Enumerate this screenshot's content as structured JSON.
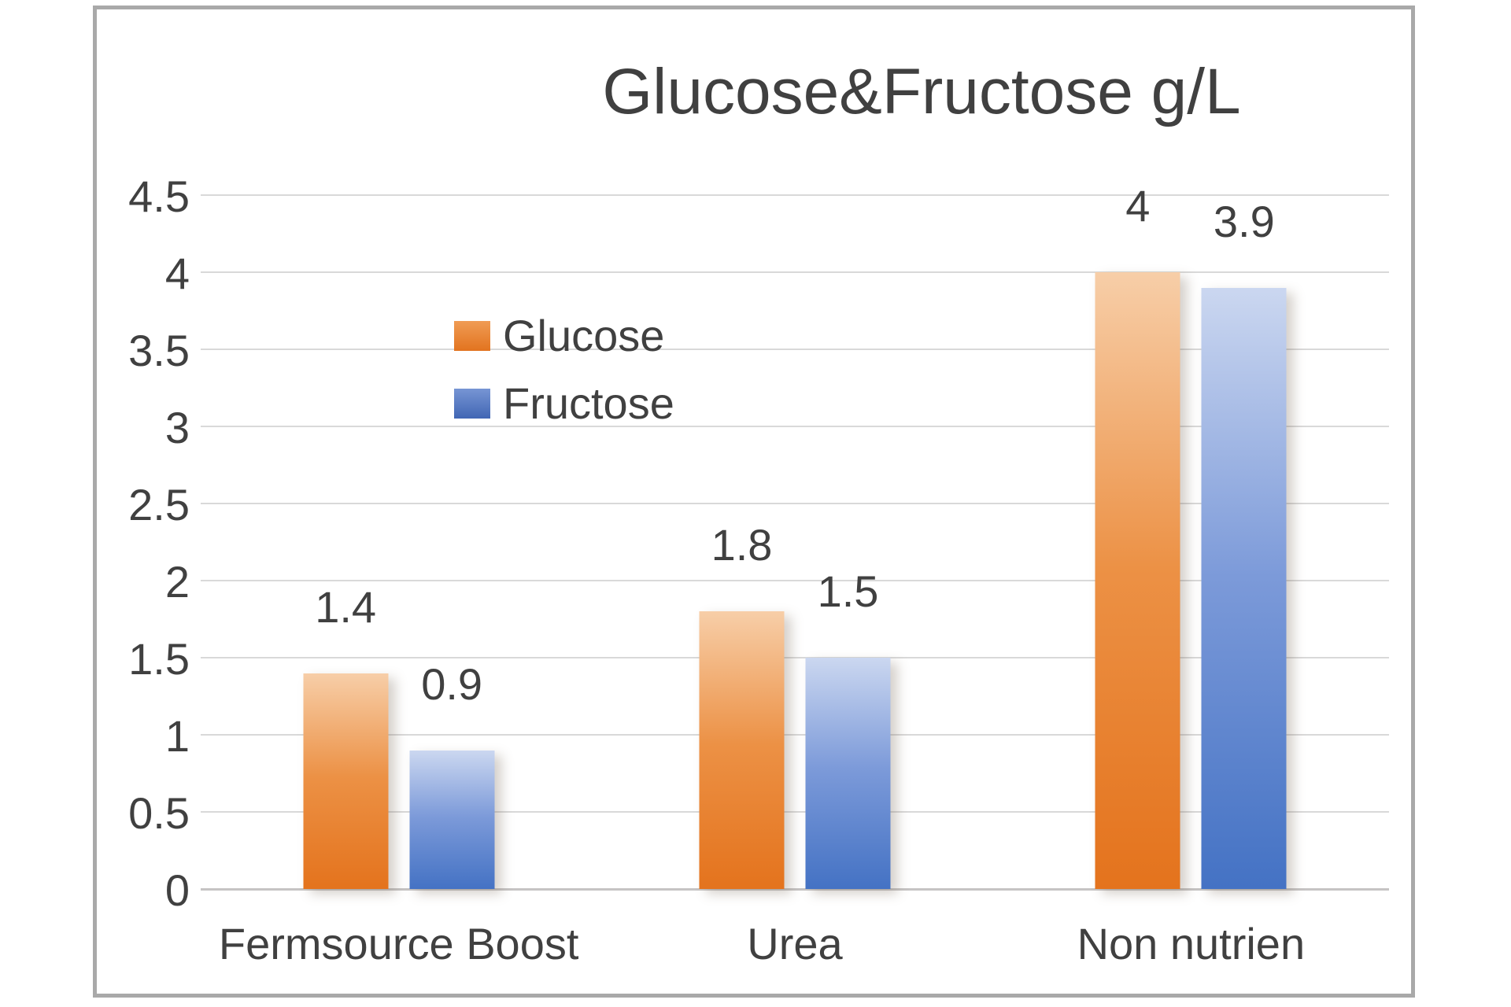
{
  "chart_data": {
    "type": "bar",
    "title": "Glucose&Fructose g/L",
    "categories": [
      "Fermsource Boost",
      "Urea",
      "Non nutrien"
    ],
    "series": [
      {
        "name": "Glucose",
        "values": [
          1.4,
          1.8,
          4
        ],
        "labels": [
          "1.4",
          "1.8",
          "4"
        ],
        "color": "#ED7D31",
        "gradient_top": "#F7CEA8",
        "gradient_mid": "#EC9145",
        "gradient_bottom": "#E4731D",
        "swatch_top": "#F09C54",
        "swatch_bottom": "#E2731F"
      },
      {
        "name": "Fructose",
        "values": [
          0.9,
          1.5,
          3.9
        ],
        "labels": [
          "0.9",
          "1.5",
          "3.9"
        ],
        "color": "#4472C4",
        "gradient_top": "#CBD7F0",
        "gradient_mid": "#7C9AD9",
        "gradient_bottom": "#4472C4",
        "swatch_top": "#7795D4",
        "swatch_bottom": "#4166B4"
      }
    ],
    "ylim": [
      0,
      4.5
    ],
    "yticks": [
      "4.5",
      "4",
      "3.5",
      "3",
      "2.5",
      "2",
      "1.5",
      "1",
      "0.5",
      "0"
    ],
    "grid": true,
    "legend_position": "inside-upper-left",
    "text_color": "#404040",
    "gridline_color": "#D9D9D9",
    "frame_border_color": "#A9A9A9"
  }
}
